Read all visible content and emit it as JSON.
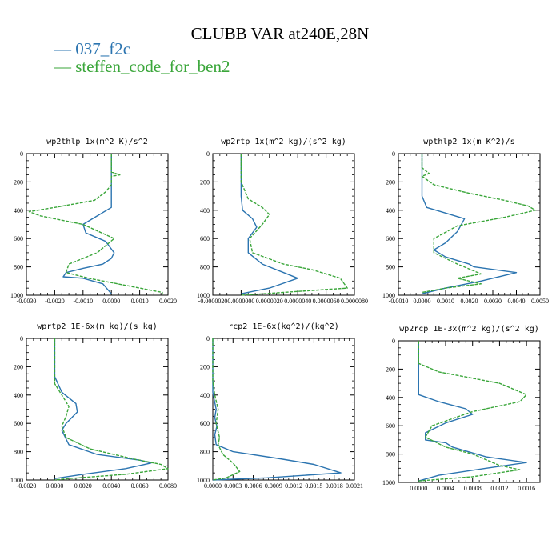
{
  "title": "CLUBB VAR at240E,28N",
  "legend": [
    {
      "dash": "—",
      "label": "037_f2c",
      "color": "#2b74b0"
    },
    {
      "dash": "—",
      "label": "steffen_code_for_ben2",
      "color": "#3aa63a"
    }
  ],
  "chart_data": [
    {
      "type": "line",
      "title": "wp2thlp   1x(m^2 K)/s^2",
      "xlim": [
        -0.003,
        0.002
      ],
      "xticks": [
        "-0.0030",
        "-0.0020",
        "-0.0010",
        "0.0000",
        "0.0010",
        "0.0020"
      ],
      "xtick_values": [
        -0.003,
        -0.002,
        -0.001,
        0.0,
        0.001,
        0.002
      ],
      "ylim": [
        1000,
        0
      ],
      "yticks": [
        0,
        200,
        400,
        600,
        800,
        1000
      ],
      "series": [
        {
          "color": "#2b74b0",
          "dashed": false,
          "x": [
            0,
            0,
            0,
            -0.0005,
            -0.001,
            -0.0009,
            -0.0002,
            0.0001,
            0,
            -0.0003,
            -0.001,
            -0.0016,
            -0.0017,
            -0.001,
            -0.0003,
            0
          ],
          "y": [
            0,
            150,
            380,
            440,
            500,
            560,
            620,
            700,
            740,
            780,
            810,
            840,
            870,
            880,
            920,
            990
          ]
        },
        {
          "color": "#3aa63a",
          "dashed": true,
          "x": [
            0,
            0,
            0.0003,
            0,
            0,
            -0.0002,
            -0.0006,
            -0.002,
            -0.0029,
            -0.0025,
            -0.001,
            0.0001,
            -0.0005,
            -0.0015,
            -0.0016,
            -0.0008,
            0.001,
            0.0018,
            0.0018
          ],
          "y": [
            0,
            130,
            150,
            160,
            220,
            270,
            330,
            380,
            410,
            440,
            500,
            600,
            700,
            780,
            840,
            880,
            950,
            980,
            995
          ]
        }
      ]
    },
    {
      "type": "line",
      "title": "wp2rtp   1x(m^2 kg)/(s^2 kg)",
      "xlim": [
        -2e-06,
        8e-06
      ],
      "xticks": [
        "-0.0000020",
        "0.0000000",
        "0.0000020",
        "0.0000040",
        "0.0000060",
        "0.0000080"
      ],
      "xtick_values": [
        -2e-06,
        0,
        2e-06,
        4e-06,
        6e-06,
        8e-06
      ],
      "ylim": [
        1000,
        0
      ],
      "yticks": [
        0,
        200,
        400,
        600,
        800,
        1000
      ],
      "series": [
        {
          "color": "#2b74b0",
          "dashed": false,
          "x": [
            0,
            0,
            0,
            1e-07,
            8e-07,
            1.1e-06,
            5e-07,
            5e-07,
            1.5e-06,
            3e-06,
            4e-06,
            2e-06,
            0
          ],
          "y": [
            0,
            200,
            300,
            400,
            460,
            520,
            600,
            700,
            780,
            840,
            880,
            950,
            990
          ]
        },
        {
          "color": "#3aa63a",
          "dashed": true,
          "x": [
            0,
            0,
            5e-07,
            1.5e-06,
            2e-06,
            1.5e-06,
            6e-07,
            8e-07,
            3e-06,
            5e-06,
            7e-06,
            7.5e-06,
            3e-06,
            0
          ],
          "y": [
            0,
            200,
            320,
            380,
            430,
            500,
            600,
            700,
            780,
            820,
            880,
            950,
            980,
            1000
          ]
        }
      ]
    },
    {
      "type": "line",
      "title": "wpthlp2   1x(m K^2)/s",
      "xlim": [
        -0.001,
        0.005
      ],
      "xticks": [
        "-0.0010",
        "0.0000",
        "0.0010",
        "0.0020",
        "0.0030",
        "0.0040",
        "0.0050"
      ],
      "xtick_values": [
        -0.001,
        0,
        0.001,
        0.002,
        0.003,
        0.004,
        0.005
      ],
      "ylim": [
        1000,
        0
      ],
      "yticks": [
        0,
        200,
        400,
        600,
        800,
        1000
      ],
      "series": [
        {
          "color": "#2b74b0",
          "dashed": false,
          "x": [
            0,
            0,
            0,
            0.0002,
            0.001,
            0.0018,
            0.0015,
            0.001,
            0.0005,
            0.001,
            0.002,
            0.0022,
            0.004,
            0.0025,
            0.001,
            0
          ],
          "y": [
            0,
            150,
            300,
            380,
            420,
            460,
            550,
            630,
            680,
            730,
            780,
            800,
            840,
            900,
            950,
            990
          ]
        },
        {
          "color": "#3aa63a",
          "dashed": true,
          "x": [
            0,
            0,
            0.0003,
            0,
            0.0005,
            0.002,
            0.0035,
            0.0045,
            0.0048,
            0.0035,
            0.0015,
            0.0005,
            0.0005,
            0.0015,
            0.0025,
            0.0015,
            0.0025,
            0.001,
            0
          ],
          "y": [
            0,
            100,
            140,
            160,
            220,
            280,
            330,
            370,
            400,
            450,
            510,
            600,
            700,
            780,
            850,
            880,
            920,
            950,
            980
          ]
        }
      ]
    },
    {
      "type": "line",
      "title": "wprtp2   1E-6x(m kg)/(s kg)",
      "xlim": [
        -0.002,
        0.008
      ],
      "xticks": [
        "-0.0020",
        "0.0000",
        "0.0020",
        "0.0040",
        "0.0060",
        "0.0080"
      ],
      "xtick_values": [
        -0.002,
        0,
        0.002,
        0.004,
        0.006,
        0.008
      ],
      "ylim": [
        1000,
        0
      ],
      "yticks": [
        0,
        200,
        400,
        600,
        800,
        1000
      ],
      "series": [
        {
          "color": "#2b74b0",
          "dashed": false,
          "x": [
            0,
            0,
            0,
            0.0005,
            0.0015,
            0.0016,
            0.0008,
            0.0005,
            0.001,
            0.003,
            0.006,
            0.0068,
            0.005,
            0.002,
            0
          ],
          "y": [
            0,
            200,
            270,
            380,
            460,
            520,
            600,
            650,
            750,
            820,
            860,
            880,
            920,
            960,
            990
          ]
        },
        {
          "color": "#3aa63a",
          "dashed": true,
          "x": [
            0,
            0,
            0,
            0.0005,
            0.001,
            0.0008,
            0.0005,
            0.0008,
            0.0025,
            0.0055,
            0.0075,
            0.008,
            0.005,
            0.001,
            0
          ],
          "y": [
            0,
            200,
            320,
            400,
            480,
            550,
            620,
            700,
            780,
            850,
            890,
            920,
            960,
            990,
            1000
          ]
        }
      ]
    },
    {
      "type": "line",
      "title": "rcp2   1E-6x(kg^2)/(kg^2)",
      "xlim": [
        0,
        0.0021
      ],
      "xticks": [
        "0.0000",
        "0.0003",
        "0.0006",
        "0.0009",
        "0.0012",
        "0.0015",
        "0.0018",
        "0.0021"
      ],
      "xtick_values": [
        0,
        0.0003,
        0.0006,
        0.0009,
        0.0012,
        0.0015,
        0.0018,
        0.0021
      ],
      "ylim": [
        1000,
        0
      ],
      "yticks": [
        0,
        200,
        400,
        600,
        800,
        1000
      ],
      "series": [
        {
          "color": "#2b74b0",
          "dashed": false,
          "x": [
            0,
            0,
            2e-05,
            5e-05,
            3e-05,
            6e-05,
            3e-05,
            5e-05,
            0.0003,
            0.001,
            0.0015,
            0.0019,
            0.0008,
            0
          ],
          "y": [
            0,
            380,
            430,
            500,
            560,
            620,
            680,
            750,
            800,
            850,
            890,
            950,
            985,
            1000
          ]
        },
        {
          "color": "#3aa63a",
          "dashed": true,
          "x": [
            0,
            0,
            3e-05,
            8e-05,
            5e-05,
            0.0001,
            8e-05,
            0.00015,
            0.0003,
            0.0004,
            0.0002,
            0
          ],
          "y": [
            0,
            300,
            400,
            500,
            600,
            700,
            750,
            820,
            880,
            940,
            985,
            1000
          ]
        }
      ]
    },
    {
      "type": "line",
      "title": "wp2rcp   1E-3x(m^2 kg)/(s^2 kg)",
      "xlim": [
        -0.0003,
        0.0018
      ],
      "xticks": [
        "0.0000",
        "0.0004",
        "0.0008",
        "0.0012",
        "0.0016"
      ],
      "xtick_values": [
        0,
        0.0004,
        0.0008,
        0.0012,
        0.0016
      ],
      "ylim": [
        1000,
        0
      ],
      "yticks": [
        0,
        200,
        400,
        600,
        800,
        1000
      ],
      "series": [
        {
          "color": "#2b74b0",
          "dashed": false,
          "x": [
            0,
            0,
            0,
            0.0003,
            0.0007,
            0.0008,
            0.0004,
            0.0001,
            0.0001,
            0.0004,
            0.0005,
            0.001,
            0.0016,
            0.001,
            0.0003,
            0
          ],
          "y": [
            0,
            200,
            380,
            430,
            480,
            520,
            580,
            650,
            700,
            720,
            750,
            820,
            860,
            900,
            950,
            990
          ]
        },
        {
          "color": "#3aa63a",
          "dashed": true,
          "x": [
            0,
            0,
            0.0003,
            0.0012,
            0.0016,
            0.0015,
            0.0008,
            0.0002,
            0.0001,
            0.0004,
            0.0008,
            0.001,
            0.0012,
            0.0015,
            0.0008,
            0
          ],
          "y": [
            0,
            160,
            220,
            300,
            380,
            430,
            500,
            600,
            680,
            750,
            800,
            840,
            880,
            910,
            960,
            990
          ]
        }
      ]
    }
  ]
}
